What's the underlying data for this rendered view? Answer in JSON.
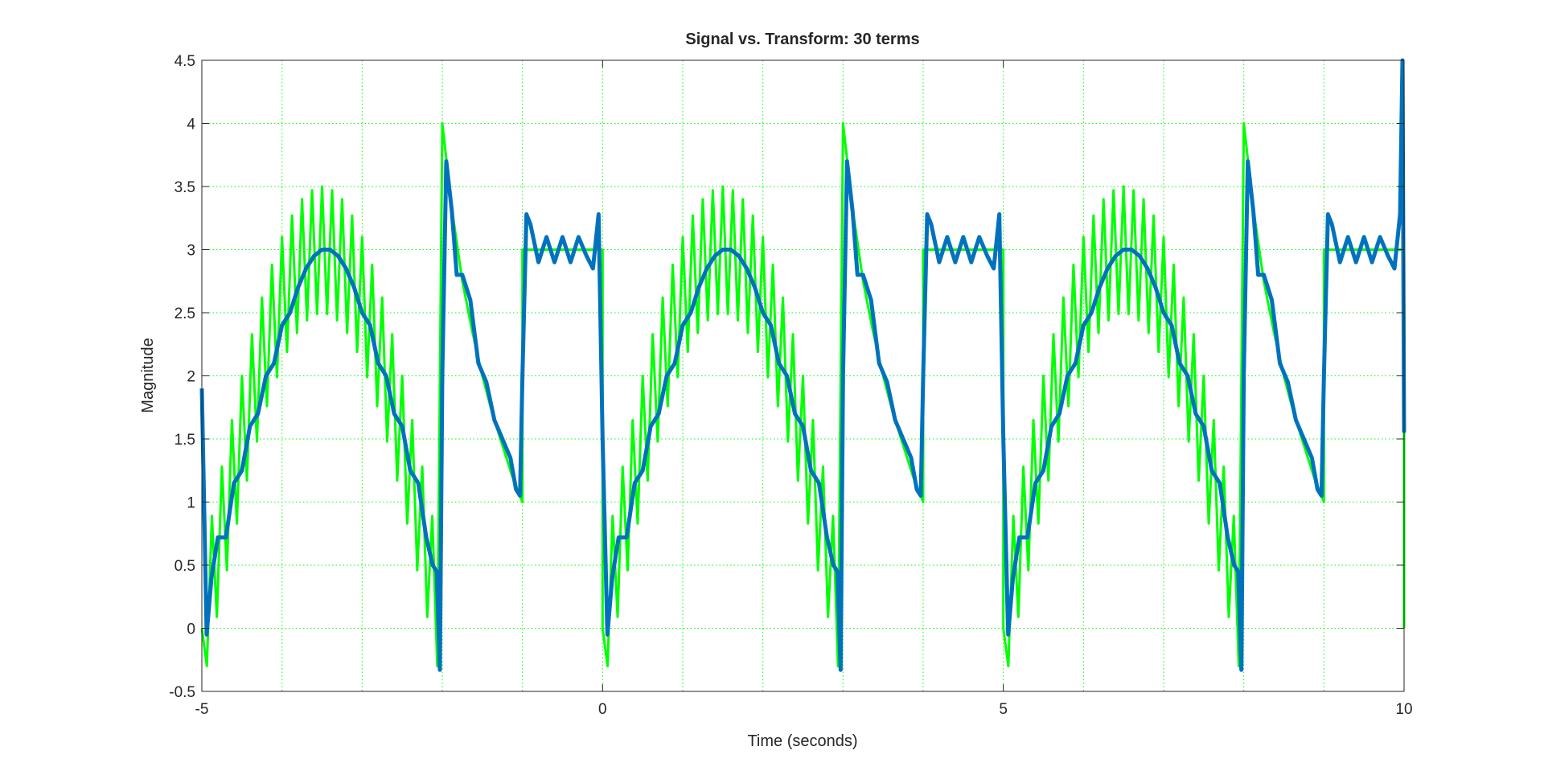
{
  "chart_data": {
    "type": "line",
    "title": "Signal vs. Transform: 30 terms",
    "xlabel": "Time (seconds)",
    "ylabel": "Magnitude",
    "xlim": [
      -5,
      10
    ],
    "xticks": [
      -5,
      0,
      5,
      10
    ],
    "xminorticks": [
      -4,
      -3,
      -2,
      -1,
      1,
      2,
      3,
      4,
      6,
      7,
      8,
      9
    ],
    "ylim": [
      -0.5,
      4.5
    ],
    "yticks": [
      -0.5,
      0,
      0.5,
      1,
      1.5,
      2,
      2.5,
      3,
      3.5,
      4,
      4.5
    ],
    "grid": true,
    "grid_color": "#00ff00",
    "series": [
      {
        "color": "#00ff00",
        "x": [
          -5,
          -4.9375,
          -4.875,
          -4.8125,
          -4.75,
          -4.6875,
          -4.625,
          -4.5625,
          -4.5,
          -4.4375,
          -4.375,
          -4.3125,
          -4.25,
          -4.1875,
          -4.125,
          -4.0625,
          -4,
          -3.9375,
          -3.875,
          -3.8125,
          -3.75,
          -3.6875,
          -3.625,
          -3.5625,
          -3.5,
          -3.4375,
          -3.375,
          -3.3125,
          -3.25,
          -3.1875,
          -3.125,
          -3.0625,
          -3,
          -2.9375,
          -2.875,
          -2.8125,
          -2.75,
          -2.6875,
          -2.625,
          -2.5625,
          -2.5,
          -2.4375,
          -2.375,
          -2.3125,
          -2.25,
          -2.1875,
          -2.125,
          -2.0625,
          -2,
          -1.875,
          -1.75,
          -1.625,
          -1.5,
          -1.375,
          -1.25,
          -1.125,
          -1,
          -1,
          0,
          0,
          0.0625,
          0.125,
          0.1875,
          0.25,
          0.3125,
          0.375,
          0.4375,
          0.5,
          0.5625,
          0.625,
          0.6875,
          0.75,
          0.8125,
          0.875,
          0.9375,
          1,
          1.0625,
          1.125,
          1.1875,
          1.25,
          1.3125,
          1.375,
          1.4375,
          1.5,
          1.5625,
          1.625,
          1.6875,
          1.75,
          1.8125,
          1.875,
          1.9375,
          2,
          2.0625,
          2.125,
          2.1875,
          2.25,
          2.3125,
          2.375,
          2.4375,
          2.5,
          2.5625,
          2.625,
          2.6875,
          2.75,
          2.8125,
          2.875,
          2.9375,
          3,
          3.125,
          3.25,
          3.375,
          3.5,
          3.625,
          3.75,
          3.875,
          4,
          4,
          5,
          5,
          5.0625,
          5.125,
          5.1875,
          5.25,
          5.3125,
          5.375,
          5.4375,
          5.5,
          5.5625,
          5.625,
          5.6875,
          5.75,
          5.8125,
          5.875,
          5.9375,
          6,
          6.0625,
          6.125,
          6.1875,
          6.25,
          6.3125,
          6.375,
          6.4375,
          6.5,
          6.5625,
          6.625,
          6.6875,
          6.75,
          6.8125,
          6.875,
          6.9375,
          7,
          7.0625,
          7.125,
          7.1875,
          7.25,
          7.3125,
          7.375,
          7.4375,
          7.5,
          7.5625,
          7.625,
          7.6875,
          7.75,
          7.8125,
          7.875,
          7.9375,
          8,
          8.125,
          8.25,
          8.375,
          8.5,
          8.625,
          8.75,
          8.875,
          9,
          9,
          10,
          10
        ],
        "values": [
          0,
          -0.3,
          0.89,
          0.09,
          1.28,
          0.46,
          1.65,
          0.83,
          2,
          1.17,
          2.33,
          1.48,
          2.62,
          1.76,
          2.88,
          1.99,
          3.1,
          2.19,
          3.27,
          2.34,
          3.4,
          2.44,
          3.47,
          2.49,
          3.5,
          2.49,
          3.47,
          2.44,
          3.4,
          2.34,
          3.27,
          2.19,
          3.1,
          1.99,
          2.88,
          1.76,
          2.62,
          1.48,
          2.33,
          1.17,
          2,
          0.83,
          1.65,
          0.46,
          1.28,
          0.09,
          0.89,
          -0.3,
          4,
          3.3,
          2.75,
          2.35,
          2,
          1.7,
          1.45,
          1.2,
          1,
          3,
          3,
          0,
          -0.3,
          0.89,
          0.09,
          1.28,
          0.46,
          1.65,
          0.83,
          2,
          1.17,
          2.33,
          1.48,
          2.62,
          1.76,
          2.88,
          1.99,
          3.1,
          2.19,
          3.27,
          2.34,
          3.4,
          2.44,
          3.47,
          2.49,
          3.5,
          2.49,
          3.47,
          2.44,
          3.4,
          2.34,
          3.27,
          2.19,
          3.1,
          1.99,
          2.88,
          1.76,
          2.62,
          1.48,
          2.33,
          1.17,
          2,
          0.83,
          1.65,
          0.46,
          1.28,
          0.09,
          0.89,
          -0.3,
          4,
          3.3,
          2.75,
          2.35,
          2,
          1.7,
          1.45,
          1.2,
          1,
          3,
          3,
          0,
          -0.3,
          0.89,
          0.09,
          1.28,
          0.46,
          1.65,
          0.83,
          2,
          1.17,
          2.33,
          1.48,
          2.62,
          1.76,
          2.88,
          1.99,
          3.1,
          2.19,
          3.27,
          2.34,
          3.4,
          2.44,
          3.47,
          2.49,
          3.5,
          2.49,
          3.47,
          2.44,
          3.4,
          2.34,
          3.27,
          2.19,
          3.1,
          1.99,
          2.88,
          1.76,
          2.62,
          1.48,
          2.33,
          1.17,
          2,
          0.83,
          1.65,
          0.46,
          1.28,
          0.09,
          0.89,
          -0.3,
          4,
          3.3,
          2.75,
          2.35,
          2,
          1.7,
          1.45,
          1.2,
          1,
          3,
          3,
          0
        ]
      },
      {
        "color": "#0072bd",
        "x": [
          -5,
          -4.94,
          -4.88,
          -4.8,
          -4.7,
          -4.6,
          -4.5,
          -4.4,
          -4.3,
          -4.2,
          -4.1,
          -4,
          -3.9,
          -3.8,
          -3.7,
          -3.6,
          -3.5,
          -3.4,
          -3.3,
          -3.2,
          -3.1,
          -3,
          -2.9,
          -2.8,
          -2.7,
          -2.6,
          -2.5,
          -2.4,
          -2.3,
          -2.2,
          -2.12,
          -2.07,
          -2.03,
          -2,
          -1.95,
          -1.88,
          -1.82,
          -1.75,
          -1.65,
          -1.55,
          -1.45,
          -1.35,
          -1.25,
          -1.15,
          -1.08,
          -1.03,
          -1,
          -0.95,
          -0.9,
          -0.8,
          -0.7,
          -0.6,
          -0.5,
          -0.4,
          -0.3,
          -0.2,
          -0.12,
          -0.05,
          0,
          0.06,
          0.12,
          0.2,
          0.3,
          0.4,
          0.5,
          0.6,
          0.7,
          0.8,
          0.9,
          1,
          1.1,
          1.2,
          1.3,
          1.4,
          1.5,
          1.6,
          1.7,
          1.8,
          1.9,
          2,
          2.1,
          2.2,
          2.3,
          2.4,
          2.5,
          2.6,
          2.7,
          2.8,
          2.88,
          2.93,
          2.97,
          3,
          3.05,
          3.12,
          3.18,
          3.25,
          3.35,
          3.45,
          3.55,
          3.65,
          3.75,
          3.85,
          3.92,
          3.97,
          4,
          4.05,
          4.1,
          4.2,
          4.3,
          4.4,
          4.5,
          4.6,
          4.7,
          4.8,
          4.88,
          4.95,
          5,
          5.06,
          5.12,
          5.2,
          5.3,
          5.4,
          5.5,
          5.6,
          5.7,
          5.8,
          5.9,
          6,
          6.1,
          6.2,
          6.3,
          6.4,
          6.5,
          6.6,
          6.7,
          6.8,
          6.9,
          7,
          7.1,
          7.2,
          7.3,
          7.4,
          7.5,
          7.6,
          7.7,
          7.8,
          7.88,
          7.93,
          7.97,
          8,
          8.05,
          8.12,
          8.18,
          8.25,
          8.35,
          8.45,
          8.55,
          8.65,
          8.75,
          8.85,
          8.92,
          8.97,
          9,
          9.05,
          9.1,
          9.2,
          9.3,
          9.4,
          9.5,
          9.6,
          9.7,
          9.8,
          9.88,
          9.95,
          9.98,
          10
        ],
        "values": [
          1.9,
          -0.05,
          0.4,
          0.72,
          0.72,
          1.15,
          1.25,
          1.6,
          1.7,
          2,
          2.1,
          2.4,
          2.5,
          2.7,
          2.85,
          2.95,
          3,
          3,
          2.95,
          2.85,
          2.7,
          2.5,
          2.4,
          2.1,
          2,
          1.7,
          1.6,
          1.25,
          1.15,
          0.72,
          0.5,
          0.45,
          -0.33,
          2,
          3.7,
          3.3,
          2.8,
          2.8,
          2.6,
          2.1,
          1.95,
          1.65,
          1.5,
          1.35,
          1.1,
          1.05,
          2,
          3.28,
          3.2,
          2.9,
          3.1,
          2.9,
          3.1,
          2.9,
          3.1,
          2.95,
          2.85,
          3.28,
          1.5,
          -0.05,
          0.4,
          0.72,
          0.72,
          1.15,
          1.25,
          1.6,
          1.7,
          2,
          2.1,
          2.4,
          2.5,
          2.7,
          2.85,
          2.95,
          3,
          3,
          2.95,
          2.85,
          2.7,
          2.5,
          2.4,
          2.1,
          2,
          1.7,
          1.6,
          1.25,
          1.15,
          0.72,
          0.5,
          0.45,
          -0.33,
          2,
          3.7,
          3.3,
          2.8,
          2.8,
          2.6,
          2.1,
          1.95,
          1.65,
          1.5,
          1.35,
          1.1,
          1.05,
          2,
          3.28,
          3.2,
          2.9,
          3.1,
          2.9,
          3.1,
          2.9,
          3.1,
          2.95,
          2.85,
          3.28,
          1.5,
          -0.05,
          0.4,
          0.72,
          0.72,
          1.15,
          1.25,
          1.6,
          1.7,
          2,
          2.1,
          2.4,
          2.5,
          2.7,
          2.85,
          2.95,
          3,
          3,
          2.95,
          2.85,
          2.7,
          2.5,
          2.4,
          2.1,
          2,
          1.7,
          1.6,
          1.25,
          1.15,
          0.72,
          0.5,
          0.45,
          -0.33,
          2,
          3.7,
          3.3,
          2.8,
          2.8,
          2.6,
          2.1,
          1.95,
          1.65,
          1.5,
          1.35,
          1.1,
          1.05,
          2,
          3.28,
          3.2,
          2.9,
          3.1,
          2.9,
          3.1,
          2.9,
          3.1,
          2.95,
          2.85,
          3.28,
          4.5,
          1.55
        ]
      }
    ]
  }
}
